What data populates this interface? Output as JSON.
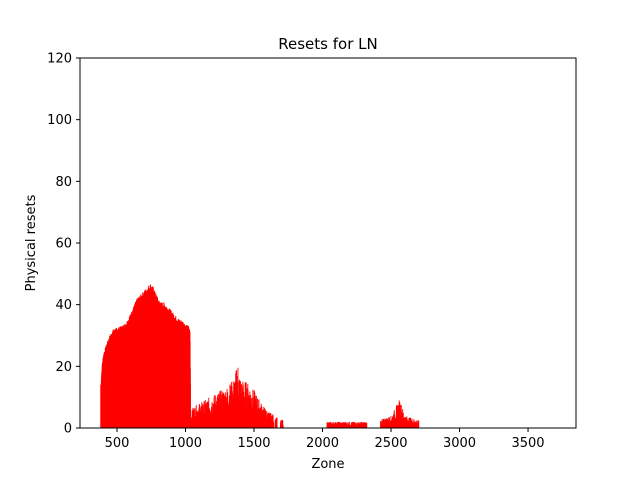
{
  "chart_data": {
    "type": "bar",
    "title": "Resets for LN",
    "xlabel": "Zone",
    "ylabel": "Physical resets",
    "xlim": [
      230,
      3850
    ],
    "ylim": [
      0,
      120
    ],
    "xticks": [
      500,
      1000,
      1500,
      2000,
      2500,
      3000,
      3500
    ],
    "yticks": [
      0,
      20,
      40,
      60,
      80,
      100,
      120
    ],
    "grid": false,
    "legend": "none",
    "series": [
      {
        "color": "#ff0000",
        "profile": [
          [
            380,
            14
          ],
          [
            385,
            18
          ],
          [
            390,
            21
          ],
          [
            400,
            24
          ],
          [
            415,
            26
          ],
          [
            430,
            28
          ],
          [
            450,
            30
          ],
          [
            470,
            31.5
          ],
          [
            500,
            32
          ],
          [
            530,
            32.5
          ],
          [
            560,
            33.5
          ],
          [
            580,
            35
          ],
          [
            600,
            37
          ],
          [
            620,
            39
          ],
          [
            640,
            41
          ],
          [
            660,
            42
          ],
          [
            680,
            43
          ],
          [
            700,
            44
          ],
          [
            720,
            45
          ],
          [
            740,
            46
          ],
          [
            760,
            45
          ],
          [
            780,
            43
          ],
          [
            800,
            41
          ],
          [
            820,
            40
          ],
          [
            840,
            40
          ],
          [
            860,
            39
          ],
          [
            880,
            38
          ],
          [
            900,
            37
          ],
          [
            920,
            36
          ],
          [
            940,
            35
          ],
          [
            960,
            34.5
          ],
          [
            980,
            34
          ],
          [
            1000,
            33
          ],
          [
            1020,
            32.5
          ],
          [
            1030,
            31
          ],
          [
            1035,
            3
          ],
          [
            1050,
            5
          ],
          [
            1100,
            6
          ],
          [
            1150,
            7
          ],
          [
            1200,
            8
          ],
          [
            1250,
            9
          ],
          [
            1300,
            10
          ],
          [
            1350,
            12
          ],
          [
            1380,
            16
          ],
          [
            1400,
            12
          ],
          [
            1450,
            11
          ],
          [
            1500,
            9
          ],
          [
            1550,
            6
          ],
          [
            1600,
            4
          ],
          [
            1650,
            3
          ],
          [
            1680,
            2
          ],
          [
            2030,
            1.5
          ],
          [
            2100,
            1.5
          ],
          [
            2200,
            1.5
          ],
          [
            2320,
            1.5
          ],
          [
            2420,
            2
          ],
          [
            2500,
            3
          ],
          [
            2560,
            7
          ],
          [
            2600,
            3
          ],
          [
            2700,
            1.8
          ]
        ],
        "segments": [
          [
            378,
            1032
          ],
          [
            1033,
            1640
          ],
          [
            1650,
            1665
          ],
          [
            1690,
            1710
          ],
          [
            2030,
            2320
          ],
          [
            2420,
            2700
          ]
        ]
      }
    ]
  }
}
